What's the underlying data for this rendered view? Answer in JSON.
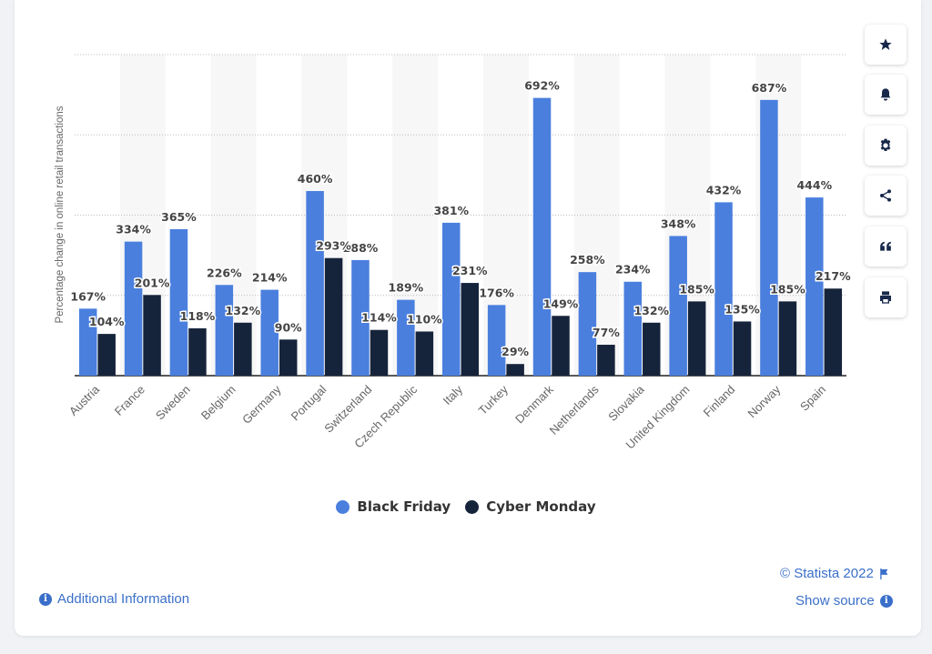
{
  "chart_data": {
    "type": "bar",
    "ylabel": "Percentage change in online retail transactions",
    "xlabel": "",
    "ylim": [
      0,
      800
    ],
    "categories": [
      "Austria",
      "France",
      "Sweden",
      "Belgium",
      "Germany",
      "Portugal",
      "Switzerland",
      "Czech Republic",
      "Italy",
      "Turkey",
      "Denmark",
      "Netherlands",
      "Slovakia",
      "United Kingdom",
      "Finland",
      "Norway",
      "Spain"
    ],
    "series": [
      {
        "name": "Black Friday",
        "color": "#4a7fde",
        "values": [
          167,
          334,
          365,
          226,
          214,
          460,
          288,
          189,
          381,
          176,
          692,
          258,
          234,
          348,
          432,
          687,
          444
        ],
        "labels": [
          "167%",
          "334%",
          "365%",
          "226%",
          "214%",
          "460%",
          "288%",
          "189%",
          "381%",
          "176%",
          "692%",
          "258%",
          "234%",
          "348%",
          "432%",
          "687%",
          "444%"
        ]
      },
      {
        "name": "Cyber Monday",
        "color": "#16243b",
        "values": [
          104,
          201,
          118,
          132,
          90,
          293,
          114,
          110,
          231,
          29,
          149,
          77,
          132,
          185,
          135,
          185,
          217
        ],
        "labels": [
          "104%",
          "201%",
          "118%",
          "132%",
          "90%",
          "293%",
          "114%",
          "110%",
          "231%",
          "29%",
          "149%",
          "77%",
          "132%",
          "185%",
          "135%",
          "185%",
          "217%"
        ]
      }
    ],
    "grid": true,
    "legend_position": "bottom"
  },
  "legend": {
    "black_friday": "Black Friday",
    "cyber_monday": "Cyber Monday"
  },
  "footer": {
    "additional_info": "Additional Information",
    "copyright": "© Statista 2022",
    "show_source": "Show source"
  },
  "sidebar_icons": [
    "star-icon",
    "bell-icon",
    "gear-icon",
    "share-icon",
    "quote-icon",
    "print-icon"
  ]
}
